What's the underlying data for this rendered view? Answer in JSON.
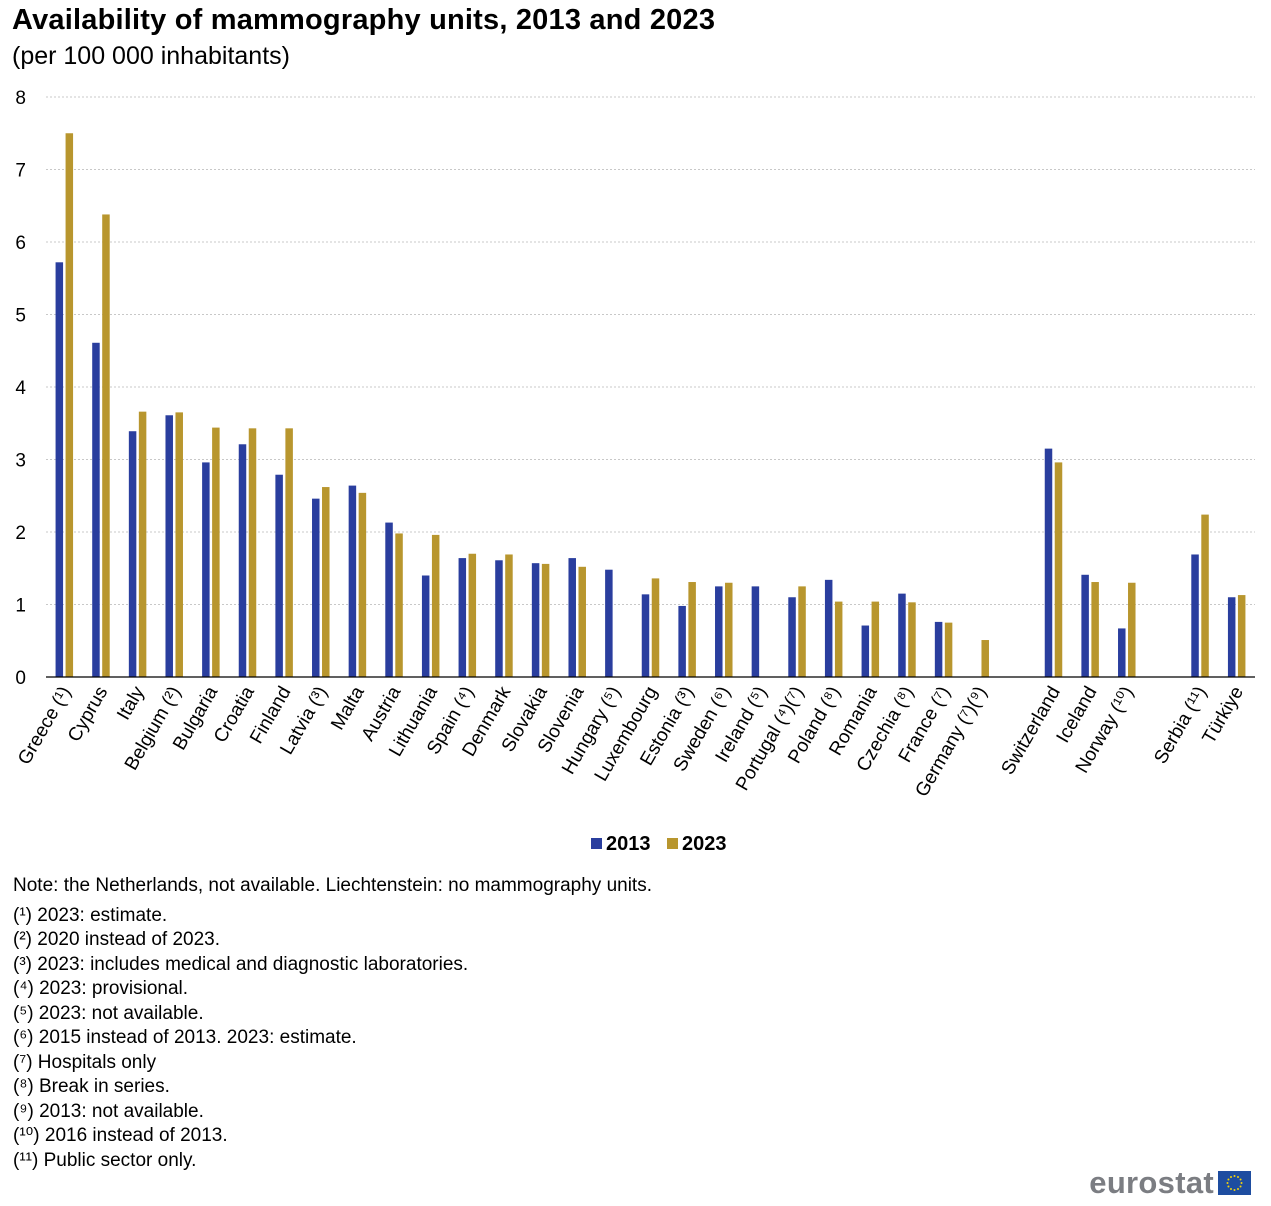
{
  "title": "Availability  of mammography units,  2013 and 2023",
  "subtitle": "(per 100 000 inhabitants)",
  "chart_data": {
    "type": "bar",
    "title": "Availability of mammography units, 2013 and 2023",
    "subtitle": "(per 100 000 inhabitants)",
    "xlabel": "",
    "ylabel": "",
    "ylim": [
      0,
      8
    ],
    "yticks": [
      0,
      1,
      2,
      3,
      4,
      5,
      6,
      7,
      8
    ],
    "grid": true,
    "legend_position": "bottom-center",
    "categories": [
      "Greece (¹)",
      "Cyprus",
      "Italy",
      "Belgium (²)",
      "Bulgaria",
      "Croatia",
      "Finland",
      "Latvia (³)",
      "Malta",
      "Austria",
      "Lithuania",
      "Spain (⁴)",
      "Denmark",
      "Slovakia",
      "Slovenia",
      "Hungary (⁵)",
      "Luxembourg",
      "Estonia (³)",
      "Sweden (⁶)",
      "Ireland (⁵)",
      "Portugal (⁴)(⁷)",
      "Poland (⁸)",
      "Romania",
      "Czechia (⁸)",
      "France (⁷)",
      "Germany (⁷)(⁹)",
      "",
      "Switzerland",
      "Iceland",
      "Norway (¹⁰)",
      "",
      "Serbia (¹¹)",
      "Türkiye"
    ],
    "series": [
      {
        "name": "2013",
        "color": "#2a3e9e",
        "values": [
          5.72,
          4.61,
          3.39,
          3.61,
          2.96,
          3.21,
          2.79,
          2.46,
          2.64,
          2.13,
          1.4,
          1.64,
          1.61,
          1.57,
          1.64,
          1.48,
          1.14,
          0.98,
          1.25,
          1.25,
          1.1,
          1.34,
          0.71,
          1.15,
          0.76,
          null,
          null,
          3.15,
          1.41,
          0.67,
          null,
          1.69,
          1.1
        ]
      },
      {
        "name": "2023",
        "color": "#b8962e",
        "values": [
          7.5,
          6.38,
          3.66,
          3.65,
          3.44,
          3.43,
          3.43,
          2.62,
          2.54,
          1.98,
          1.96,
          1.7,
          1.69,
          1.56,
          1.52,
          null,
          1.36,
          1.31,
          1.3,
          null,
          1.25,
          1.04,
          1.04,
          1.03,
          0.75,
          0.51,
          null,
          2.96,
          1.31,
          1.3,
          null,
          2.24,
          1.13
        ]
      }
    ]
  },
  "notes": {
    "main": "Note: the Netherlands, not available. Liechtenstein: no mammography units.",
    "footnotes": [
      "(¹) 2023: estimate.",
      "(²) 2020 instead of 2023.",
      "(³) 2023: includes medical and diagnostic laboratories.",
      "(⁴) 2023: provisional.",
      "(⁵) 2023: not available.",
      "(⁶) 2015 instead of 2013. 2023: estimate.",
      "(⁷) Hospitals only",
      "(⁸) Break in series.",
      "(⁹) 2013: not available.",
      "(¹⁰) 2016 instead of 2013.",
      "(¹¹) Public sector only."
    ]
  },
  "logo": {
    "text": "eurostat",
    "flag_color": "#1e4da0",
    "star_color": "#f5d20a"
  }
}
